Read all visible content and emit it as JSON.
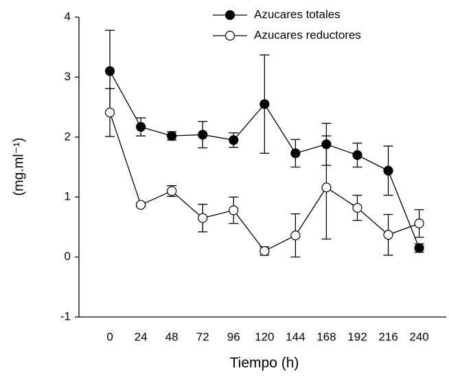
{
  "chart_data": {
    "type": "line",
    "xlabel": "Tiempo (h)",
    "ylabel": "(mg.ml⁻¹)",
    "x": [
      0,
      24,
      48,
      72,
      96,
      120,
      144,
      168,
      192,
      216,
      240
    ],
    "series": [
      {
        "name": "Azucares totales",
        "color": "#000000",
        "marker": "filled",
        "values": [
          3.1,
          2.17,
          2.02,
          2.04,
          1.95,
          2.55,
          1.73,
          1.88,
          1.7,
          1.44,
          0.15
        ],
        "errors": [
          0.68,
          0.15,
          0.07,
          0.22,
          0.12,
          0.82,
          0.23,
          0.35,
          0.2,
          0.41,
          0.07
        ]
      },
      {
        "name": "Azucares reductores",
        "color": "#000000",
        "marker": "open",
        "values": [
          2.41,
          0.87,
          1.1,
          0.65,
          0.78,
          0.1,
          0.36,
          1.16,
          0.82,
          0.37,
          0.56
        ],
        "errors": [
          0.4,
          0.03,
          0.09,
          0.23,
          0.22,
          0.07,
          0.36,
          0.86,
          0.21,
          0.34,
          0.23
        ]
      }
    ],
    "xlim": [
      -24,
      261
    ],
    "xticks": [
      0,
      24,
      48,
      72,
      96,
      120,
      144,
      168,
      192,
      216,
      240
    ],
    "ylim": [
      -1,
      4
    ],
    "yticks": [
      -1,
      0,
      1,
      2,
      3,
      4
    ],
    "legend": "top-right",
    "grid": false
  }
}
